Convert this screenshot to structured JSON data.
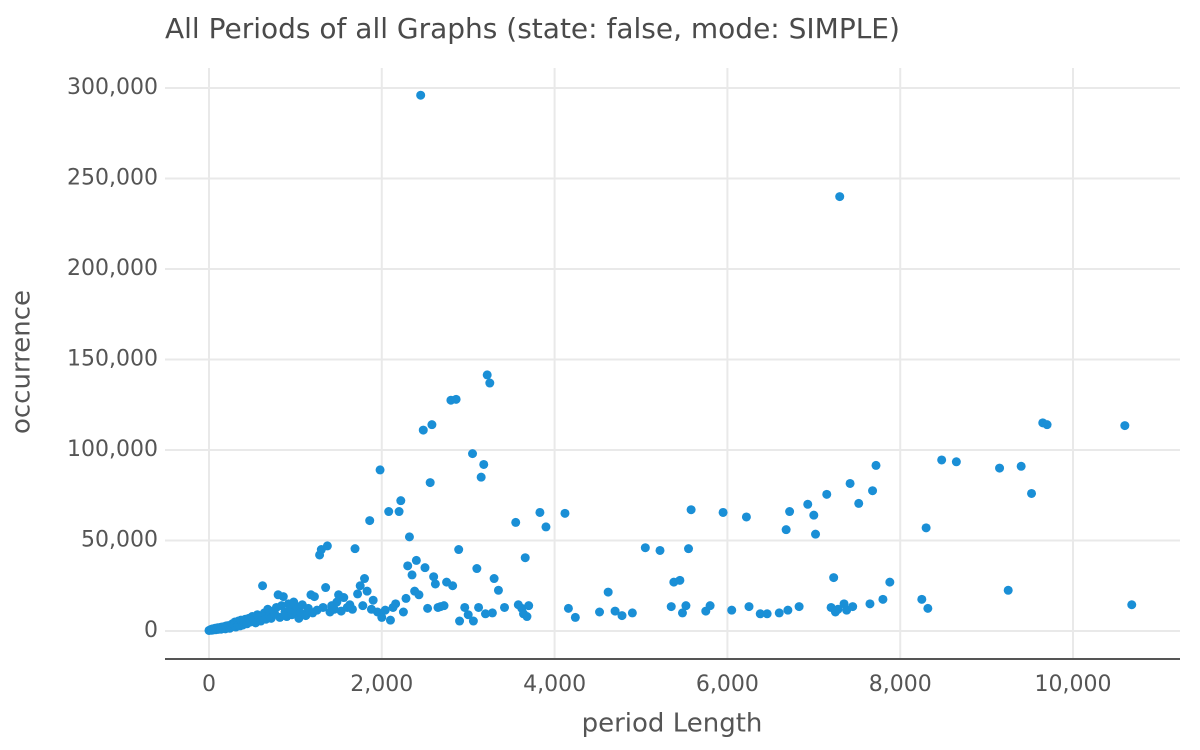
{
  "chart_data": {
    "type": "scatter",
    "title": "All Periods of all Graphs (state: false, mode: SIMPLE)",
    "xlabel": "period Length",
    "ylabel": "occurrence",
    "xlim": [
      -500,
      11300
    ],
    "ylim": [
      -15000,
      310000
    ],
    "xticks": [
      0,
      2000,
      4000,
      6000,
      8000,
      10000
    ],
    "xtick_labels": [
      "0",
      "2,000",
      "4,000",
      "6,000",
      "8,000",
      "10,000"
    ],
    "yticks": [
      0,
      50000,
      100000,
      150000,
      200000,
      250000,
      300000
    ],
    "ytick_labels": [
      "0",
      "50,000",
      "100,000",
      "150,000",
      "200,000",
      "250,000",
      "300,000"
    ],
    "grid": true,
    "legend": "none",
    "marker_color": "#1a8fd6",
    "points": [
      [
        0,
        300
      ],
      [
        10,
        500
      ],
      [
        20,
        800
      ],
      [
        30,
        400
      ],
      [
        40,
        1200
      ],
      [
        50,
        600
      ],
      [
        60,
        900
      ],
      [
        70,
        1500
      ],
      [
        80,
        700
      ],
      [
        90,
        1100
      ],
      [
        100,
        1800
      ],
      [
        110,
        900
      ],
      [
        120,
        1300
      ],
      [
        130,
        2000
      ],
      [
        140,
        1000
      ],
      [
        150,
        2200
      ],
      [
        160,
        1400
      ],
      [
        170,
        1700
      ],
      [
        180,
        2500
      ],
      [
        190,
        1200
      ],
      [
        200,
        2800
      ],
      [
        210,
        1600
      ],
      [
        220,
        3000
      ],
      [
        230,
        2000
      ],
      [
        240,
        1500
      ],
      [
        250,
        3200
      ],
      [
        260,
        2300
      ],
      [
        270,
        4000
      ],
      [
        280,
        2600
      ],
      [
        290,
        3500
      ],
      [
        300,
        5000
      ],
      [
        310,
        2200
      ],
      [
        320,
        4200
      ],
      [
        330,
        3000
      ],
      [
        340,
        5500
      ],
      [
        350,
        3800
      ],
      [
        360,
        2800
      ],
      [
        370,
        6000
      ],
      [
        380,
        4500
      ],
      [
        390,
        3300
      ],
      [
        400,
        5200
      ],
      [
        420,
        6500
      ],
      [
        440,
        4000
      ],
      [
        460,
        7000
      ],
      [
        480,
        5000
      ],
      [
        500,
        8000
      ],
      [
        520,
        6000
      ],
      [
        540,
        4500
      ],
      [
        560,
        9000
      ],
      [
        580,
        7500
      ],
      [
        600,
        5500
      ],
      [
        620,
        25000
      ],
      [
        640,
        10000
      ],
      [
        660,
        6500
      ],
      [
        680,
        12000
      ],
      [
        700,
        8500
      ],
      [
        720,
        7000
      ],
      [
        740,
        11000
      ],
      [
        760,
        9500
      ],
      [
        780,
        13000
      ],
      [
        800,
        20000
      ],
      [
        820,
        7500
      ],
      [
        840,
        14000
      ],
      [
        860,
        19000
      ],
      [
        880,
        10500
      ],
      [
        900,
        8000
      ],
      [
        920,
        15000
      ],
      [
        940,
        12000
      ],
      [
        960,
        9000
      ],
      [
        980,
        16000
      ],
      [
        1000,
        11000
      ],
      [
        1020,
        13500
      ],
      [
        1040,
        7000
      ],
      [
        1060,
        10000
      ],
      [
        1080,
        14500
      ],
      [
        1100,
        9500
      ],
      [
        1120,
        8500
      ],
      [
        1150,
        12500
      ],
      [
        1180,
        20000
      ],
      [
        1200,
        10000
      ],
      [
        1220,
        19000
      ],
      [
        1250,
        11500
      ],
      [
        1280,
        42000
      ],
      [
        1300,
        45000
      ],
      [
        1320,
        13000
      ],
      [
        1350,
        24000
      ],
      [
        1370,
        47000
      ],
      [
        1400,
        10500
      ],
      [
        1420,
        14000
      ],
      [
        1450,
        12000
      ],
      [
        1480,
        16000
      ],
      [
        1500,
        20000
      ],
      [
        1530,
        11000
      ],
      [
        1560,
        18500
      ],
      [
        1600,
        13000
      ],
      [
        1630,
        14500
      ],
      [
        1660,
        12000
      ],
      [
        1690,
        45500
      ],
      [
        1720,
        20500
      ],
      [
        1750,
        25000
      ],
      [
        1780,
        14000
      ],
      [
        1800,
        29000
      ],
      [
        1830,
        22000
      ],
      [
        1860,
        61000
      ],
      [
        1880,
        12000
      ],
      [
        1900,
        17000
      ],
      [
        1950,
        10500
      ],
      [
        1980,
        89000
      ],
      [
        2000,
        7500
      ],
      [
        2040,
        11500
      ],
      [
        2080,
        66000
      ],
      [
        2100,
        6000
      ],
      [
        2130,
        13000
      ],
      [
        2160,
        15000
      ],
      [
        2200,
        66000
      ],
      [
        2220,
        72000
      ],
      [
        2250,
        10500
      ],
      [
        2280,
        18000
      ],
      [
        2300,
        36000
      ],
      [
        2320,
        52000
      ],
      [
        2350,
        31000
      ],
      [
        2380,
        22000
      ],
      [
        2400,
        39000
      ],
      [
        2430,
        20000
      ],
      [
        2450,
        296000
      ],
      [
        2480,
        111000
      ],
      [
        2500,
        35000
      ],
      [
        2530,
        12500
      ],
      [
        2560,
        82000
      ],
      [
        2580,
        114000
      ],
      [
        2600,
        30000
      ],
      [
        2620,
        26000
      ],
      [
        2650,
        13000
      ],
      [
        2680,
        13500
      ],
      [
        2720,
        14000
      ],
      [
        2750,
        27000
      ],
      [
        2800,
        127500
      ],
      [
        2820,
        25000
      ],
      [
        2860,
        128000
      ],
      [
        2890,
        45000
      ],
      [
        2900,
        5500
      ],
      [
        2960,
        13000
      ],
      [
        3000,
        9000
      ],
      [
        3050,
        98000
      ],
      [
        3060,
        5500
      ],
      [
        3100,
        34500
      ],
      [
        3120,
        13000
      ],
      [
        3150,
        85000
      ],
      [
        3180,
        92000
      ],
      [
        3200,
        9500
      ],
      [
        3220,
        141500
      ],
      [
        3250,
        137000
      ],
      [
        3280,
        10000
      ],
      [
        3300,
        29000
      ],
      [
        3350,
        22500
      ],
      [
        3420,
        13000
      ],
      [
        3550,
        60000
      ],
      [
        3580,
        14500
      ],
      [
        3620,
        12500
      ],
      [
        3640,
        9500
      ],
      [
        3660,
        40500
      ],
      [
        3680,
        8000
      ],
      [
        3700,
        14000
      ],
      [
        3830,
        65500
      ],
      [
        3900,
        57500
      ],
      [
        4120,
        65000
      ],
      [
        4160,
        12500
      ],
      [
        4240,
        7500
      ],
      [
        4520,
        10500
      ],
      [
        4620,
        21500
      ],
      [
        4700,
        11000
      ],
      [
        4780,
        8500
      ],
      [
        4900,
        10000
      ],
      [
        5050,
        46000
      ],
      [
        5220,
        44500
      ],
      [
        5350,
        13500
      ],
      [
        5380,
        27000
      ],
      [
        5450,
        28000
      ],
      [
        5480,
        10000
      ],
      [
        5520,
        14000
      ],
      [
        5550,
        45500
      ],
      [
        5580,
        67000
      ],
      [
        5750,
        11000
      ],
      [
        5800,
        14000
      ],
      [
        5950,
        65500
      ],
      [
        6050,
        11500
      ],
      [
        6220,
        63000
      ],
      [
        6250,
        13500
      ],
      [
        6380,
        9500
      ],
      [
        6460,
        9500
      ],
      [
        6600,
        10000
      ],
      [
        6680,
        56000
      ],
      [
        6700,
        11500
      ],
      [
        6720,
        66000
      ],
      [
        6830,
        13500
      ],
      [
        6930,
        70000
      ],
      [
        7000,
        64000
      ],
      [
        7020,
        53500
      ],
      [
        7150,
        75500
      ],
      [
        7200,
        13000
      ],
      [
        7230,
        29500
      ],
      [
        7250,
        10500
      ],
      [
        7280,
        12000
      ],
      [
        7300,
        240000
      ],
      [
        7350,
        15000
      ],
      [
        7380,
        11500
      ],
      [
        7420,
        81500
      ],
      [
        7450,
        13500
      ],
      [
        7520,
        70500
      ],
      [
        7650,
        15000
      ],
      [
        7680,
        77500
      ],
      [
        7720,
        91500
      ],
      [
        7800,
        17500
      ],
      [
        7880,
        27000
      ],
      [
        8250,
        17500
      ],
      [
        8300,
        57000
      ],
      [
        8320,
        12500
      ],
      [
        8480,
        94500
      ],
      [
        8650,
        93500
      ],
      [
        9150,
        90000
      ],
      [
        9250,
        22500
      ],
      [
        9400,
        91000
      ],
      [
        9520,
        76000
      ],
      [
        9650,
        115000
      ],
      [
        9700,
        114000
      ],
      [
        10600,
        113500
      ],
      [
        10680,
        14500
      ]
    ]
  }
}
